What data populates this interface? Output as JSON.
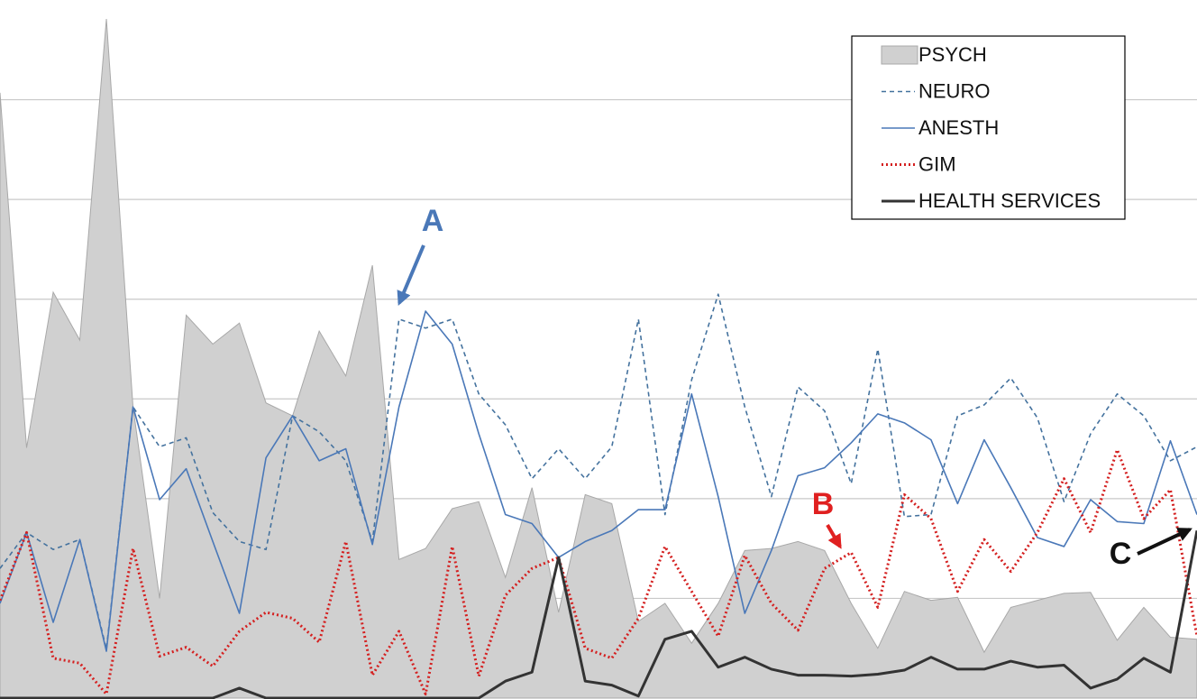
{
  "chart_data": {
    "type": "line",
    "categories": [
      null,
      null,
      null,
      null,
      null,
      null,
      null,
      null,
      null,
      null,
      null,
      null,
      null,
      null,
      null,
      null,
      null,
      null,
      null,
      null,
      null,
      null,
      null,
      null,
      null,
      null,
      null,
      null,
      null,
      null,
      null,
      null,
      null,
      null,
      null,
      null,
      null,
      null,
      null,
      null,
      null,
      null,
      null,
      null,
      null,
      null
    ],
    "ylim": [
      0,
      7
    ],
    "yticks": [
      1,
      2,
      3,
      4,
      5,
      6
    ],
    "grid": true,
    "legend": "top-right",
    "series": [
      {
        "name": "PSYCH",
        "style": "area",
        "color": "#d0d0d0",
        "values": [
          6.07,
          2.51,
          4.07,
          3.59,
          6.81,
          2.92,
          1.0,
          3.84,
          3.55,
          3.76,
          2.96,
          2.83,
          3.68,
          3.23,
          4.34,
          1.39,
          1.5,
          1.9,
          1.97,
          1.21,
          2.11,
          0.86,
          2.04,
          1.95,
          0.77,
          0.95,
          0.55,
          0.95,
          1.48,
          1.5,
          1.57,
          1.48,
          0.95,
          0.5,
          1.07,
          0.98,
          1.01,
          0.46,
          0.91,
          0.98,
          1.05,
          1.06,
          0.58,
          0.91,
          0.61,
          0.59
        ]
      },
      {
        "name": "NEURO",
        "style": "dashed",
        "color": "#44729e",
        "values": [
          1.3,
          1.66,
          1.49,
          1.59,
          0.49,
          2.92,
          2.52,
          2.61,
          1.86,
          1.57,
          1.49,
          2.83,
          2.67,
          2.38,
          1.57,
          3.8,
          3.71,
          3.8,
          3.05,
          2.74,
          2.2,
          2.5,
          2.2,
          2.52,
          3.8,
          1.84,
          3.19,
          4.05,
          2.92,
          2.02,
          3.12,
          2.88,
          2.15,
          3.5,
          1.82,
          1.84,
          2.83,
          2.94,
          3.21,
          2.81,
          1.97,
          2.65,
          3.05,
          2.83,
          2.38,
          2.52
        ]
      },
      {
        "name": "ANESTH",
        "style": "solid",
        "color": "#4a78b8",
        "values": [
          0.95,
          1.66,
          0.76,
          1.59,
          0.47,
          2.92,
          1.99,
          2.3,
          1.57,
          0.85,
          2.41,
          2.83,
          2.38,
          2.5,
          1.54,
          2.92,
          3.88,
          3.55,
          2.65,
          1.84,
          1.75,
          1.41,
          1.57,
          1.68,
          1.89,
          1.89,
          3.05,
          2.02,
          0.85,
          1.48,
          2.23,
          2.31,
          2.56,
          2.85,
          2.76,
          2.59,
          1.95,
          2.59,
          2.11,
          1.61,
          1.52,
          1.99,
          1.77,
          1.75,
          2.58,
          1.84
        ]
      },
      {
        "name": "GIM",
        "style": "dotted",
        "color": "#d42020",
        "values": [
          0.98,
          1.66,
          0.4,
          0.35,
          0.04,
          1.5,
          0.42,
          0.51,
          0.32,
          0.67,
          0.86,
          0.8,
          0.56,
          1.57,
          0.23,
          0.67,
          0.04,
          1.52,
          0.22,
          1.03,
          1.3,
          1.41,
          0.5,
          0.4,
          0.8,
          1.52,
          1.07,
          0.62,
          1.43,
          0.95,
          0.68,
          1.3,
          1.46,
          0.91,
          2.04,
          1.8,
          1.07,
          1.59,
          1.27,
          1.66,
          2.2,
          1.66,
          2.49,
          1.8,
          2.09,
          0.62
        ]
      },
      {
        "name": "HEALTH SERVICES",
        "style": "solid",
        "color": "#333333",
        "values": [
          0,
          0,
          0,
          0,
          0,
          0,
          0,
          0,
          0,
          0.1,
          0,
          0,
          0,
          0,
          0,
          0,
          0,
          0,
          0,
          0.17,
          0.26,
          1.41,
          0.17,
          0.13,
          0.02,
          0.59,
          0.67,
          0.31,
          0.41,
          0.29,
          0.23,
          0.23,
          0.22,
          0.24,
          0.28,
          0.41,
          0.29,
          0.29,
          0.37,
          0.31,
          0.33,
          0.1,
          0.19,
          0.4,
          0.26,
          1.68
        ]
      }
    ],
    "annotations": [
      {
        "text": "A",
        "color": "#4a78b8"
      },
      {
        "text": "B",
        "color": "#e02020"
      },
      {
        "text": "C",
        "color": "#111111"
      }
    ]
  }
}
